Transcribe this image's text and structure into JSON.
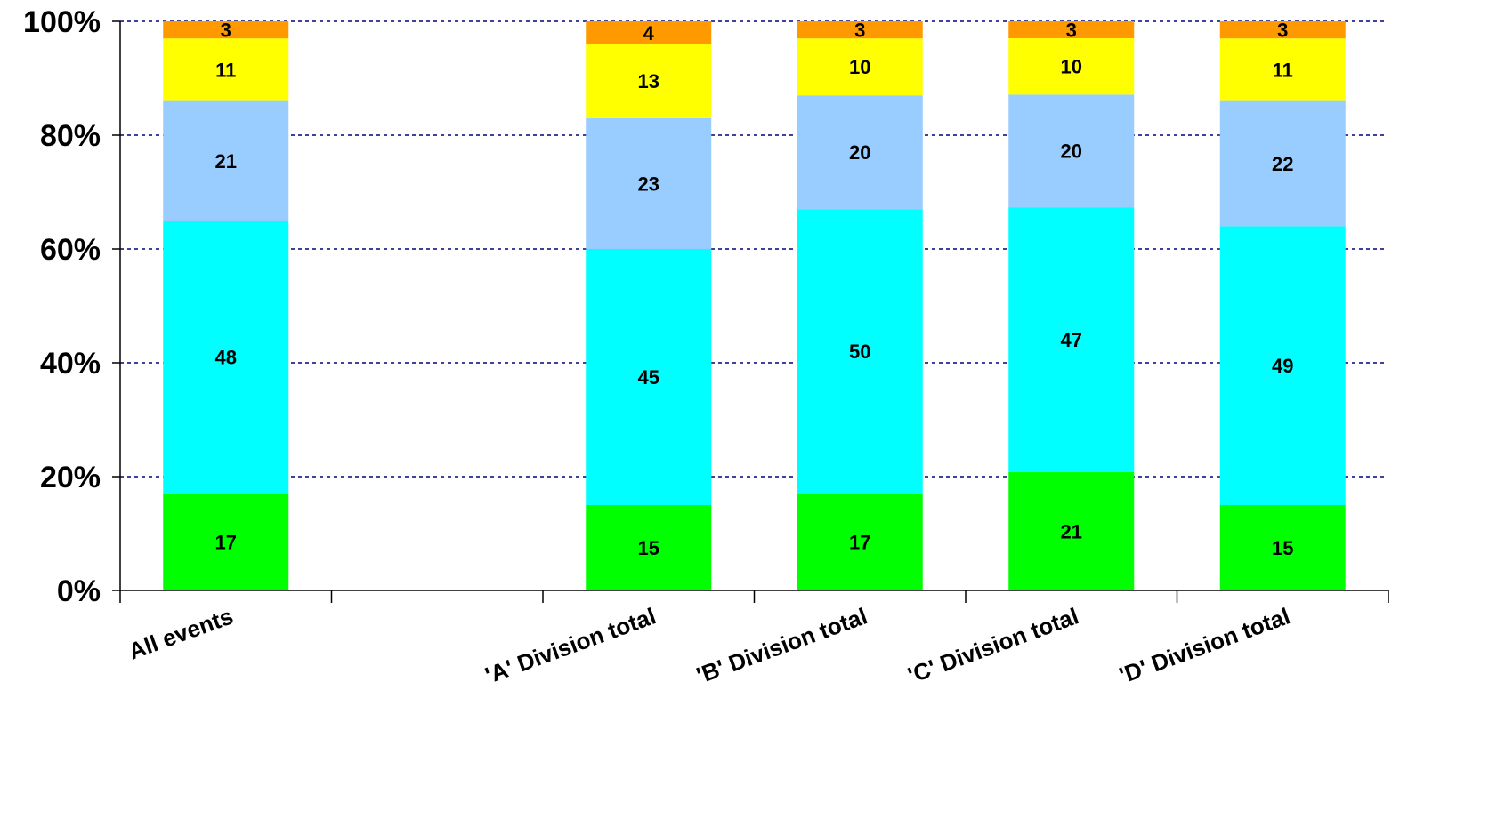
{
  "chart_data": {
    "type": "bar",
    "stacked": true,
    "normalized": true,
    "categories": [
      "All events",
      "",
      "'A' Division total",
      "'B' Division total",
      "'C' Division total",
      "'D' Division total"
    ],
    "series": [
      {
        "values": [
          17,
          null,
          15,
          17,
          21,
          15
        ],
        "color": "#00ff00"
      },
      {
        "values": [
          48,
          null,
          45,
          50,
          47,
          49
        ],
        "color": "#00ffff"
      },
      {
        "values": [
          21,
          null,
          23,
          20,
          20,
          22
        ],
        "color": "#99ccff"
      },
      {
        "values": [
          11,
          null,
          13,
          10,
          10,
          11
        ],
        "color": "#ffff00"
      },
      {
        "values": [
          3,
          null,
          4,
          3,
          3,
          3
        ],
        "color": "#ff9900"
      }
    ],
    "y_ticks": [
      "0%",
      "20%",
      "40%",
      "60%",
      "80%",
      "100%"
    ],
    "ylim": [
      0,
      100
    ],
    "grid": true,
    "grid_color": "#000080",
    "legend": "none"
  }
}
